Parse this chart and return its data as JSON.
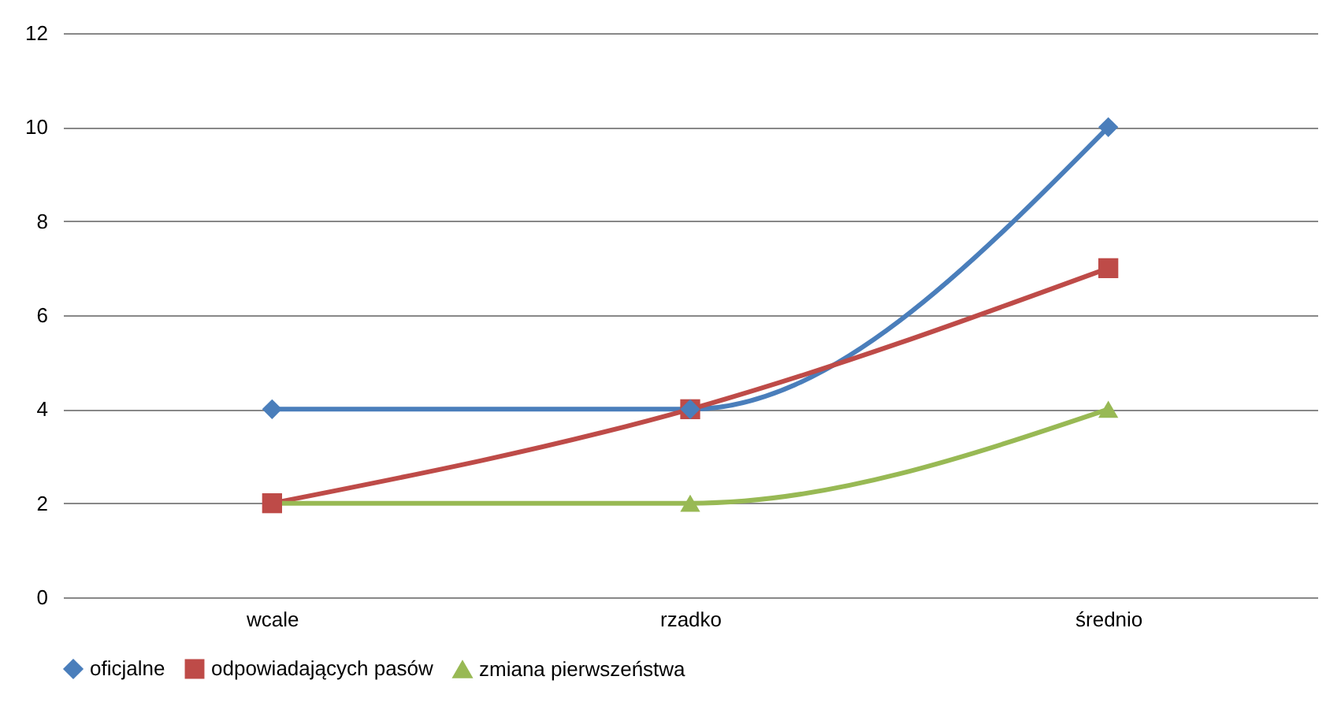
{
  "chart_data": {
    "type": "line",
    "categories": [
      "wcale",
      "rzadko",
      "średnio"
    ],
    "series": [
      {
        "name": "oficjalne",
        "color": "#4a7ebb",
        "marker": "diamond",
        "values": [
          4,
          4,
          10
        ]
      },
      {
        "name": "odpowiadających pasów",
        "color": "#be4b48",
        "marker": "square",
        "values": [
          2,
          4,
          7
        ]
      },
      {
        "name": "zmiana pierwszeństwa",
        "color": "#98b954",
        "marker": "triangle",
        "values": [
          2,
          2,
          4
        ]
      }
    ],
    "ylim": [
      0,
      12
    ],
    "yticks": [
      0,
      2,
      4,
      6,
      8,
      10,
      12
    ],
    "grid": "y",
    "legend": "bottom",
    "line_style": "solid"
  }
}
